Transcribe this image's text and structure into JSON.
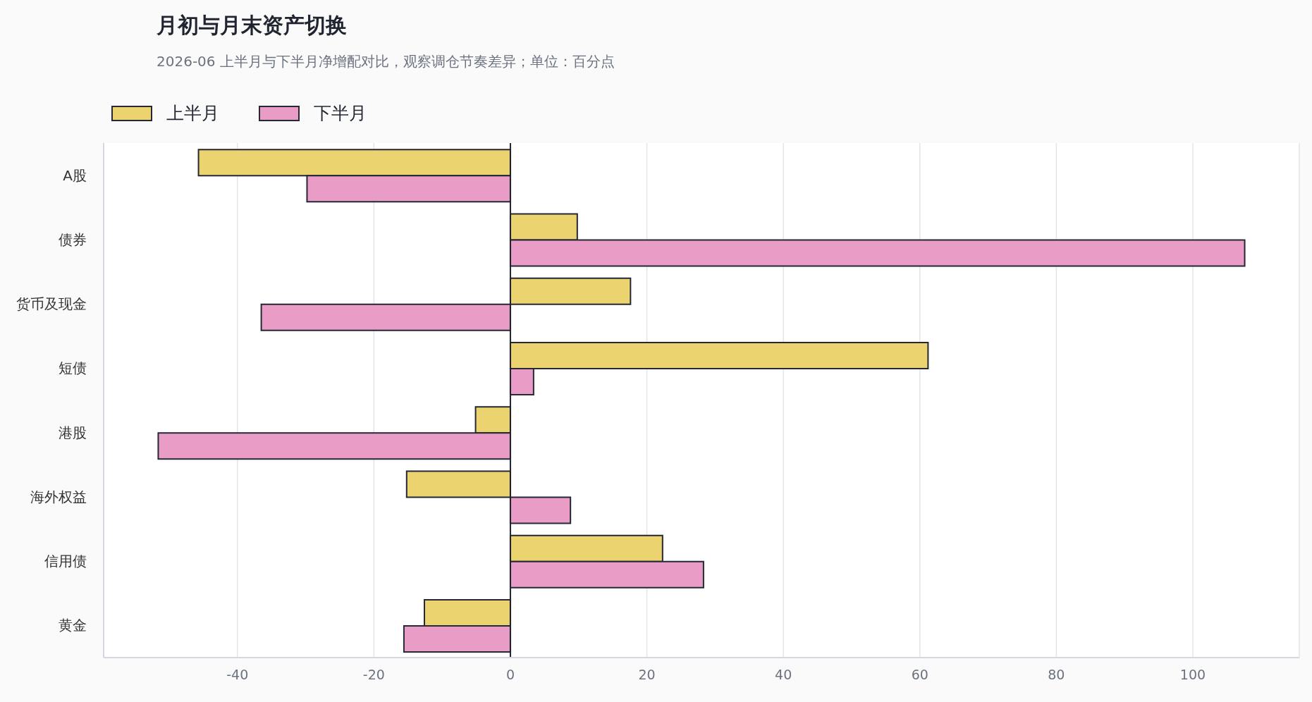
{
  "chart_data": {
    "type": "bar",
    "orientation": "horizontal",
    "title": "月初与月末资产切换",
    "subtitle": "2026-06 上半月与下半月净增配对比，观察调仓节奏差异；单位：百分点",
    "categories": [
      "A股",
      "债券",
      "货币及现金",
      "短债",
      "港股",
      "海外权益",
      "信用债",
      "黄金"
    ],
    "series": [
      {
        "name": "上半月",
        "color": "#ebd36f",
        "values": [
          -45.7,
          9.8,
          17.6,
          61.2,
          -5.1,
          -15.2,
          22.3,
          -12.6
        ]
      },
      {
        "name": "下半月",
        "color": "#e89cc6",
        "values": [
          -29.8,
          107.6,
          -36.5,
          3.4,
          -51.6,
          8.8,
          28.3,
          -15.6
        ]
      }
    ],
    "xlim": [
      -59.6,
      115.6
    ],
    "xticks": [
      -40,
      -20,
      0,
      20,
      40,
      60,
      80,
      100
    ],
    "grid": "x",
    "legend": "top left",
    "ref_lines": [
      {
        "axis": "x",
        "value": 0,
        "color": "#1f2430"
      }
    ]
  }
}
